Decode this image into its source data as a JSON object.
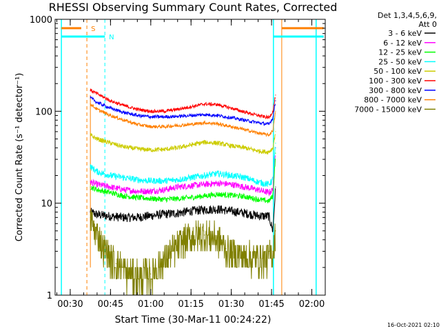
{
  "chart_data": {
    "type": "line",
    "title": "RHESSI Observing Summary Count Rates, Corrected",
    "xlabel": "Start Time (30-Mar-11 00:24:22)",
    "ylabel": "Corrected Count Rate (s⁻¹ detector⁻¹)",
    "x_ticks": [
      "00:30",
      "00:45",
      "01:00",
      "01:15",
      "01:30",
      "01:45",
      "02:00"
    ],
    "x_tick_minutes": [
      30,
      45,
      60,
      75,
      90,
      105,
      120
    ],
    "xlim_minutes": [
      24.37,
      125
    ],
    "y_scale": "log",
    "ylim": [
      1,
      1000
    ],
    "y_ticks": [
      "1",
      "10",
      "100",
      "1000"
    ],
    "y_tick_values": [
      1,
      10,
      100,
      1000
    ],
    "legend_header": [
      "Det 1,3,4,5,6,9,",
      "Att 0"
    ],
    "legend_placement": "top-right",
    "grid": false,
    "markers": {
      "S_label": "S",
      "N_label": "N",
      "S_lines_min": [
        36.2,
        108.8
      ],
      "N_lines_min": [
        42.9
      ],
      "day_edges_min": [
        26.7,
        105.7,
        121.6
      ],
      "segments": [
        [
          26.7,
          34.1,
          800,
          "S"
        ],
        [
          108.8,
          124.4,
          800,
          "S"
        ],
        [
          26.7,
          42.9,
          650,
          "N"
        ],
        [
          105.7,
          124.4,
          650,
          "N"
        ]
      ]
    },
    "timestamp": "16-Oct-2021 02:10",
    "data_start_min": 37.5,
    "data_end_min": 106.5,
    "series": [
      {
        "name": "3 - 6 keV",
        "color": "#000000",
        "x": [
          37.5,
          40,
          45,
          50,
          55,
          60,
          65,
          70,
          75,
          80,
          85,
          90,
          95,
          100,
          104,
          105.5,
          106.5
        ],
        "values": [
          8,
          7.5,
          7.2,
          7.0,
          7.0,
          7.3,
          7.6,
          7.8,
          8.2,
          8.5,
          8.6,
          8.2,
          7.8,
          7.3,
          7.2,
          5,
          15
        ]
      },
      {
        "name": "6 - 12 keV",
        "color": "#ff00ff",
        "x": [
          37.5,
          40,
          45,
          50,
          55,
          60,
          65,
          70,
          75,
          80,
          85,
          90,
          95,
          100,
          104,
          105.5,
          106.5
        ],
        "values": [
          17,
          16,
          15,
          14,
          13.5,
          13.5,
          14,
          15,
          15.5,
          16,
          16.5,
          16,
          15,
          14,
          13,
          14,
          40
        ]
      },
      {
        "name": "12 - 25 keV",
        "color": "#00ff00",
        "x": [
          37.5,
          40,
          45,
          50,
          55,
          60,
          65,
          70,
          75,
          80,
          85,
          90,
          95,
          100,
          104,
          105.5,
          106.5
        ],
        "values": [
          15,
          14,
          13,
          12,
          11.5,
          11.2,
          11,
          11.2,
          11.5,
          12,
          12.5,
          12.2,
          11.8,
          11,
          10.5,
          12,
          35
        ]
      },
      {
        "name": "25 - 50 keV",
        "color": "#00ffff",
        "x": [
          37.5,
          40,
          45,
          50,
          55,
          60,
          65,
          70,
          75,
          80,
          85,
          90,
          95,
          100,
          104,
          105.5,
          106.5
        ],
        "values": [
          25,
          22,
          20,
          19,
          18,
          17.5,
          17.5,
          18,
          19,
          20,
          21,
          20,
          19,
          17,
          16,
          18,
          45
        ]
      },
      {
        "name": "50 - 100 keV",
        "color": "#cccc00",
        "x": [
          37.5,
          40,
          45,
          50,
          55,
          60,
          65,
          70,
          75,
          80,
          85,
          90,
          95,
          100,
          104,
          105.5,
          106.5
        ],
        "values": [
          55,
          50,
          45,
          41,
          39,
          38,
          38.5,
          40,
          43,
          46,
          45,
          42,
          40,
          37,
          36,
          40,
          60
        ]
      },
      {
        "name": "100 - 300 keV",
        "color": "#ff0000",
        "x": [
          37.5,
          40,
          45,
          50,
          55,
          60,
          65,
          70,
          75,
          80,
          85,
          90,
          95,
          100,
          104,
          105.5,
          106.5
        ],
        "values": [
          170,
          155,
          130,
          115,
          105,
          100,
          100,
          105,
          112,
          120,
          118,
          108,
          98,
          90,
          85,
          100,
          150
        ]
      },
      {
        "name": "300 - 800 keV",
        "color": "#0000ff",
        "x": [
          37.5,
          40,
          45,
          50,
          55,
          60,
          65,
          70,
          75,
          80,
          85,
          90,
          95,
          100,
          104,
          105.5,
          106.5
        ],
        "values": [
          140,
          125,
          108,
          97,
          90,
          87,
          87,
          88,
          90,
          92,
          90,
          85,
          80,
          75,
          72,
          85,
          130
        ]
      },
      {
        "name": "800 - 7000 keV",
        "color": "#ff8000",
        "x": [
          37.5,
          40,
          45,
          50,
          55,
          60,
          65,
          70,
          75,
          80,
          85,
          90,
          95,
          100,
          104,
          105.5,
          106.5
        ],
        "values": [
          120,
          105,
          90,
          80,
          72,
          68,
          68,
          70,
          72,
          75,
          73,
          68,
          63,
          58,
          55,
          62,
          100
        ]
      },
      {
        "name": "7000 - 15000 keV",
        "color": "#808000",
        "x": [
          37.5,
          39,
          41,
          43,
          45,
          47,
          50,
          55,
          60,
          64,
          68,
          72,
          76,
          80,
          84,
          86,
          88,
          90,
          95,
          100,
          104,
          105.5,
          106.5
        ],
        "values": [
          7,
          5,
          4,
          3,
          2.5,
          2.2,
          1.8,
          1.6,
          1.7,
          2.2,
          3,
          3.8,
          4.3,
          4.5,
          4.2,
          3.8,
          3.2,
          2.8,
          2.6,
          2.5,
          2.5,
          3,
          5
        ]
      }
    ]
  }
}
